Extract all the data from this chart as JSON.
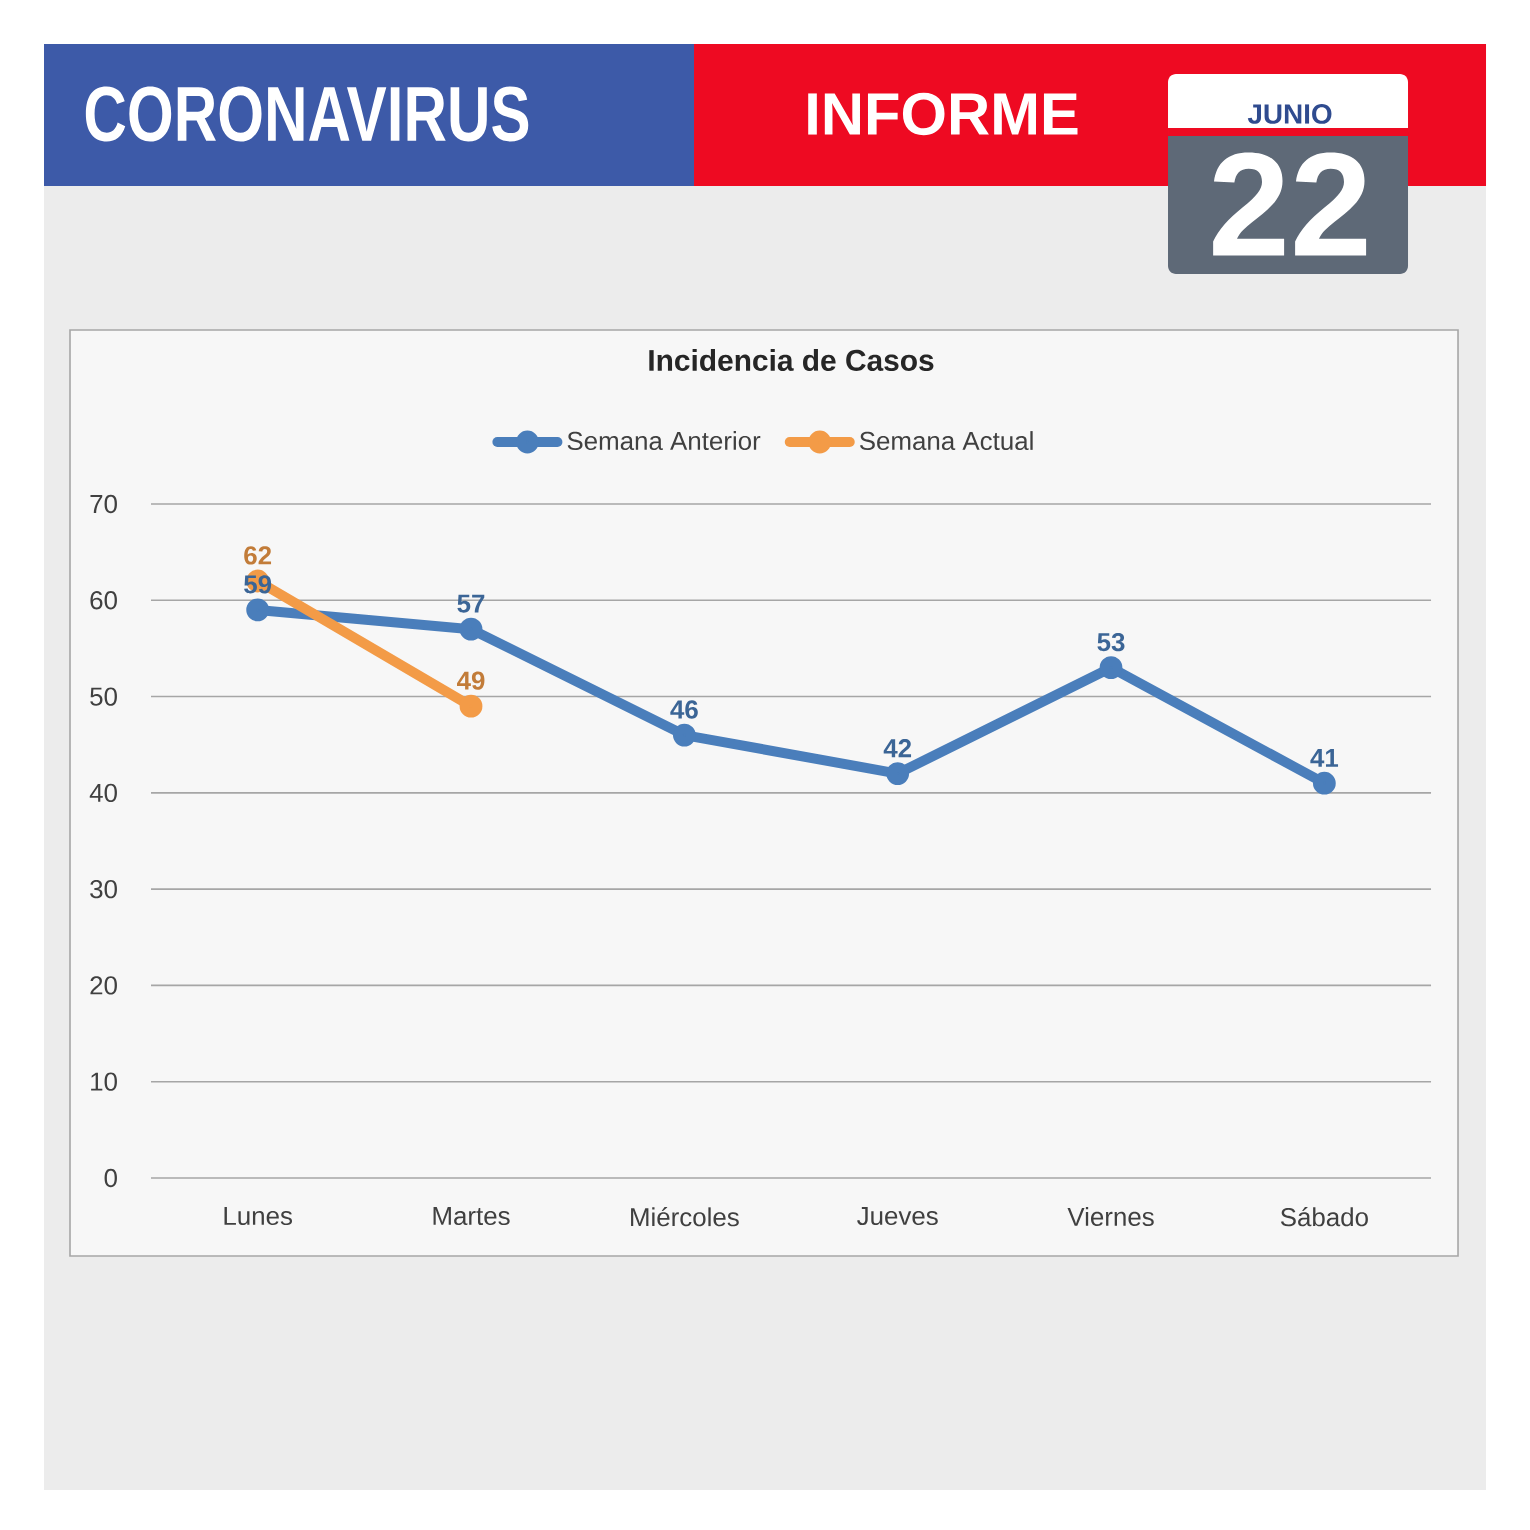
{
  "chart_data": {
    "type": "line",
    "title": "Incidencia de Casos",
    "annotations": [
      "CORONAVIRUS",
      "INFORME",
      "JUNIO",
      "22"
    ],
    "categories": [
      "Lunes",
      "Martes",
      "Miércoles",
      "Jueves",
      "Viernes",
      "Sábado"
    ],
    "series": [
      {
        "name": "Semana Anterior",
        "color": "#4a7ebb",
        "values": [
          59,
          57,
          46,
          42,
          53,
          41
        ]
      },
      {
        "name": "Semana Actual",
        "color": "#f39b47",
        "values": [
          62,
          49,
          null,
          null,
          null,
          null
        ]
      }
    ],
    "ylim": [
      0,
      70
    ],
    "yticks": [
      0,
      10,
      20,
      30,
      40,
      50,
      60,
      70
    ],
    "grid": "y",
    "legend": "top",
    "data_labels": true,
    "marker": "circle"
  }
}
